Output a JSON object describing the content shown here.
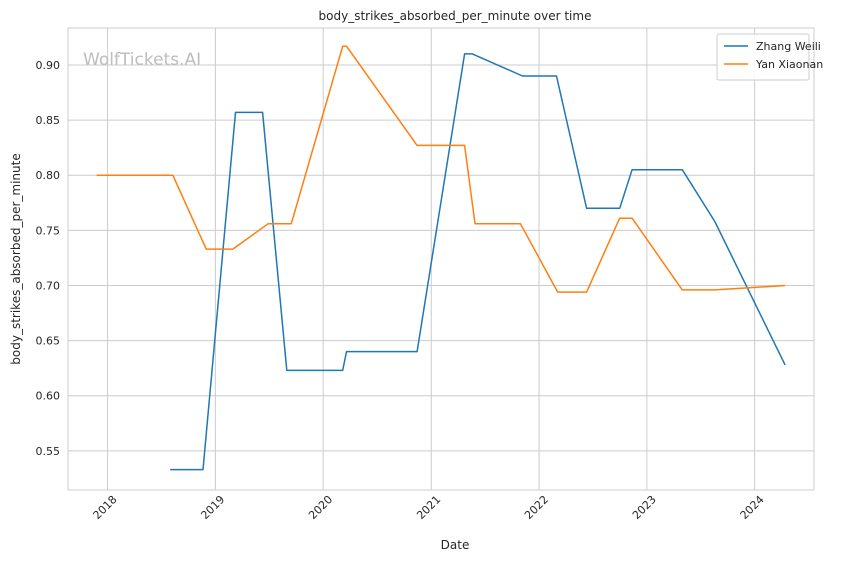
{
  "watermark": "WolfTickets.AI",
  "chart_data": {
    "type": "line",
    "title": "body_strikes_absorbed_per_minute over time",
    "xlabel": "Date",
    "ylabel": "body_strikes_absorbed_per_minute",
    "x_type": "date",
    "xlim": [
      "2017-08-20",
      "2024-07-20"
    ],
    "ylim": [
      0.5145,
      0.9335
    ],
    "x_ticks": [
      "2018",
      "2019",
      "2020",
      "2021",
      "2022",
      "2023",
      "2024"
    ],
    "y_ticks": [
      "0.55",
      "0.60",
      "0.65",
      "0.70",
      "0.75",
      "0.80",
      "0.85",
      "0.90"
    ],
    "grid": true,
    "legend_position": "top-right",
    "series": [
      {
        "name": "Zhang Weili",
        "color": "#1f77b4",
        "points": [
          [
            "2018-08-01",
            0.533
          ],
          [
            "2018-11-20",
            0.533
          ],
          [
            "2019-03-10",
            0.857
          ],
          [
            "2019-06-10",
            0.857
          ],
          [
            "2019-08-31",
            0.623
          ],
          [
            "2020-03-07",
            0.623
          ],
          [
            "2020-03-20",
            0.64
          ],
          [
            "2020-11-14",
            0.64
          ],
          [
            "2021-04-24",
            0.91
          ],
          [
            "2021-05-20",
            0.91
          ],
          [
            "2021-11-06",
            0.89
          ],
          [
            "2022-03-01",
            0.89
          ],
          [
            "2022-06-11",
            0.77
          ],
          [
            "2022-10-01",
            0.77
          ],
          [
            "2022-11-12",
            0.805
          ],
          [
            "2023-05-01",
            0.805
          ],
          [
            "2023-08-19",
            0.758
          ],
          [
            "2024-04-13",
            0.628
          ]
        ]
      },
      {
        "name": "Yan Xiaonan",
        "color": "#ff7f0e",
        "points": [
          [
            "2017-11-25",
            0.8
          ],
          [
            "2018-08-10",
            0.8
          ],
          [
            "2018-12-01",
            0.733
          ],
          [
            "2019-03-01",
            0.733
          ],
          [
            "2019-06-29",
            0.756
          ],
          [
            "2019-09-15",
            0.756
          ],
          [
            "2020-03-07",
            0.917
          ],
          [
            "2020-03-20",
            0.917
          ],
          [
            "2020-11-14",
            0.827
          ],
          [
            "2021-04-24",
            0.827
          ],
          [
            "2021-05-29",
            0.756
          ],
          [
            "2021-10-30",
            0.756
          ],
          [
            "2022-03-05",
            0.694
          ],
          [
            "2022-06-11",
            0.694
          ],
          [
            "2022-10-01",
            0.761
          ],
          [
            "2022-11-12",
            0.761
          ],
          [
            "2023-05-01",
            0.696
          ],
          [
            "2023-08-19",
            0.696
          ],
          [
            "2024-04-13",
            0.7
          ]
        ]
      }
    ]
  }
}
